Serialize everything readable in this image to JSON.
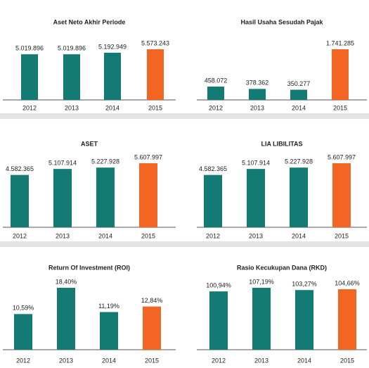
{
  "chart_data": [
    {
      "type": "bar",
      "title": "Aset Neto Akhir Periode",
      "categories": [
        "2012",
        "2013",
        "2014",
        "2015"
      ],
      "values": [
        5019896,
        5019896,
        5192949,
        5573243
      ],
      "value_labels": [
        "5.019.896",
        "5.019.896",
        "5.192.949",
        "5.573.243"
      ],
      "colors": [
        "#137b74",
        "#137b74",
        "#137b74",
        "#f26522"
      ]
    },
    {
      "type": "bar",
      "title": "Hasil Usaha Sesudah Pajak",
      "categories": [
        "2012",
        "2013",
        "2014",
        "2015"
      ],
      "values": [
        458072,
        378362,
        350277,
        1741285
      ],
      "value_labels": [
        "458.072",
        "378.362",
        "350.277",
        "1.741.285"
      ],
      "colors": [
        "#137b74",
        "#137b74",
        "#137b74",
        "#f26522"
      ]
    },
    {
      "type": "bar",
      "title": "ASET",
      "categories": [
        "2012",
        "2013",
        "2014",
        "2015"
      ],
      "values": [
        4582365,
        5107914,
        5227928,
        5607997
      ],
      "value_labels": [
        "4.582.365",
        "5.107.914",
        "5.227.928",
        "5.607.997"
      ],
      "colors": [
        "#137b74",
        "#137b74",
        "#137b74",
        "#f26522"
      ]
    },
    {
      "type": "bar",
      "title": "LIA LIBILITAS",
      "categories": [
        "2012",
        "2013",
        "2014",
        "2015"
      ],
      "values": [
        4582365,
        5107914,
        5227928,
        5607997
      ],
      "value_labels": [
        "4.582.365",
        "5.107.914",
        "5.227.928",
        "5.607.997"
      ],
      "colors": [
        "#137b74",
        "#137b74",
        "#137b74",
        "#f26522"
      ]
    },
    {
      "type": "bar",
      "title": "Return Of Investment (ROI)",
      "categories": [
        "2012",
        "2013",
        "2014",
        "2015"
      ],
      "values": [
        10.59,
        18.4,
        11.19,
        12.84
      ],
      "value_labels": [
        "10,59%",
        "18,40%",
        "11,19%",
        "12,84%"
      ],
      "colors": [
        "#137b74",
        "#137b74",
        "#137b74",
        "#f26522"
      ]
    },
    {
      "type": "bar",
      "title": "Rasio Kecukupan Dana (RKD)",
      "categories": [
        "2012",
        "2013",
        "2014",
        "2015"
      ],
      "values": [
        100.94,
        107.19,
        103.27,
        104.66
      ],
      "value_labels": [
        "100,94%",
        "107,19%",
        "103,27%",
        "104,66%"
      ],
      "colors": [
        "#137b74",
        "#137b74",
        "#137b74",
        "#f26522"
      ]
    }
  ]
}
